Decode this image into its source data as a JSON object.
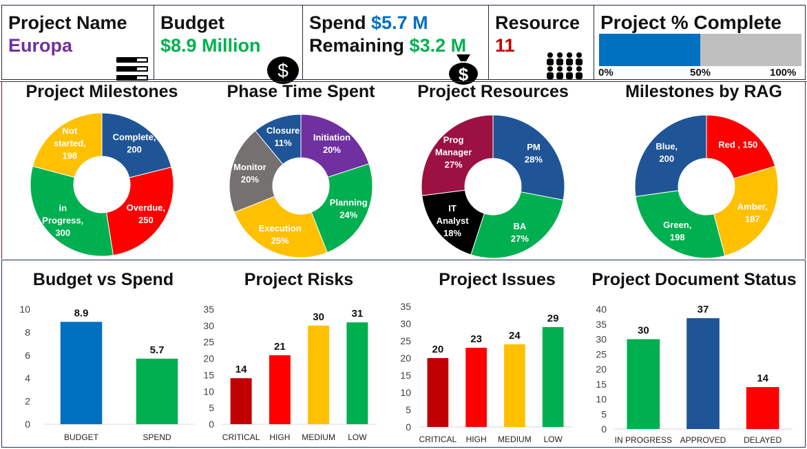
{
  "kpis": {
    "project": {
      "title": "Project Name",
      "value": "Europa"
    },
    "budget": {
      "title": "Budget",
      "value": "$8.9 Million"
    },
    "spend": {
      "label1": "Spend",
      "value1": "$5.7 M",
      "label2": "Remaining",
      "value2": "$3.2 M"
    },
    "resource": {
      "title": "Resource",
      "value": "11"
    },
    "complete": {
      "title": "Project % Complete",
      "percent": 50,
      "tick0": "0%",
      "tick50": "50%",
      "tick100": "100%"
    }
  },
  "colors": {
    "blue": "#1f5596",
    "red": "#ff0000",
    "darkred": "#c00000",
    "green": "#00b050",
    "yellow": "#ffc000",
    "purple": "#7030a0",
    "gray": "#767171",
    "black": "#000000",
    "maroon": "#9a1142",
    "accent_blue": "#0070c0",
    "light_gray": "#bfbfbf"
  },
  "chart_data": [
    {
      "id": "milestones",
      "type": "pie",
      "title": "Project Milestones",
      "slices": [
        {
          "name": "Complete",
          "label": [
            "Complete,",
            "200"
          ],
          "value": 200,
          "color": "#1f5596"
        },
        {
          "name": "Overdue",
          "label": [
            "Overdue,",
            "250"
          ],
          "value": 250,
          "color": "#ff0000"
        },
        {
          "name": "in Progress",
          "label": [
            "in",
            "Progress,",
            "300"
          ],
          "value": 300,
          "color": "#00b050"
        },
        {
          "name": "Not started",
          "label": [
            "Not",
            "started,",
            "198"
          ],
          "value": 198,
          "color": "#ffc000"
        }
      ]
    },
    {
      "id": "phase",
      "type": "pie",
      "title": "Phase Time Spent",
      "slices": [
        {
          "name": "Initiation",
          "label": [
            "Initiation",
            "20%"
          ],
          "value": 20,
          "color": "#7030a0"
        },
        {
          "name": "Planning",
          "label": [
            "Planning",
            "24%"
          ],
          "value": 24,
          "color": "#00b050"
        },
        {
          "name": "Execution",
          "label": [
            "Execution",
            "25%"
          ],
          "value": 25,
          "color": "#ffc000"
        },
        {
          "name": "Monitor",
          "label": [
            "Monitor",
            "20%"
          ],
          "value": 20,
          "color": "#767171"
        },
        {
          "name": "Closure",
          "label": [
            "Closure",
            "11%"
          ],
          "value": 11,
          "color": "#1f5596"
        }
      ]
    },
    {
      "id": "resources",
      "type": "pie",
      "title": "Project Resources",
      "slices": [
        {
          "name": "PM",
          "label": [
            "PM",
            "28%"
          ],
          "value": 28,
          "color": "#1f5596"
        },
        {
          "name": "BA",
          "label": [
            "BA",
            "27%"
          ],
          "value": 27,
          "color": "#00b050"
        },
        {
          "name": "IT Analyst",
          "label": [
            "IT",
            "Analyst",
            "18%"
          ],
          "value": 18,
          "color": "#000000"
        },
        {
          "name": "Prog Manager",
          "label": [
            "Prog",
            "Manager",
            "27%"
          ],
          "value": 27,
          "color": "#9a1142"
        }
      ]
    },
    {
      "id": "rag",
      "type": "pie",
      "title": "Milestones by RAG",
      "slices": [
        {
          "name": "Red",
          "label": [
            "Red , 150"
          ],
          "value": 150,
          "color": "#ff0000"
        },
        {
          "name": "Amber",
          "label": [
            "Amber,",
            "187"
          ],
          "value": 187,
          "color": "#ffc000"
        },
        {
          "name": "Green",
          "label": [
            "Green,",
            "198"
          ],
          "value": 198,
          "color": "#00b050"
        },
        {
          "name": "Blue",
          "label": [
            "Blue,",
            "200"
          ],
          "value": 200,
          "color": "#1f5596"
        }
      ]
    },
    {
      "id": "budget_spend",
      "type": "bar",
      "title": "Budget vs Spend",
      "categories": [
        "BUDGET",
        "SPEND"
      ],
      "values": [
        8.9,
        5.7
      ],
      "colors": [
        "#0070c0",
        "#00b050"
      ],
      "ylim": [
        0,
        10
      ],
      "yticks": [
        0,
        2,
        4,
        6,
        8,
        10
      ],
      "grid": false
    },
    {
      "id": "risks",
      "type": "bar",
      "title": "Project Risks",
      "categories": [
        "CRITICAL",
        "HIGH",
        "MEDIUM",
        "LOW"
      ],
      "values": [
        14,
        21,
        30,
        31
      ],
      "colors": [
        "#c00000",
        "#ff0000",
        "#ffc000",
        "#00b050"
      ],
      "ylim": [
        0,
        35
      ],
      "yticks": [
        0,
        5,
        10,
        15,
        20,
        25,
        30,
        35
      ],
      "grid": false
    },
    {
      "id": "issues",
      "type": "bar",
      "title": "Project Issues",
      "categories": [
        "CRITICAL",
        "HIGH",
        "MEDIUM",
        "LOW"
      ],
      "values": [
        20,
        23,
        24,
        29
      ],
      "colors": [
        "#c00000",
        "#ff0000",
        "#ffc000",
        "#00b050"
      ],
      "ylim": [
        0,
        35
      ],
      "yticks": [
        0,
        5,
        10,
        15,
        20,
        25,
        30,
        35
      ],
      "grid": false
    },
    {
      "id": "documents",
      "type": "bar",
      "title": "Project Document Status",
      "categories": [
        "IN PROGRESS",
        "APPROVED",
        "DELAYED"
      ],
      "values": [
        30,
        37,
        14
      ],
      "colors": [
        "#00b050",
        "#1f5596",
        "#ff0000"
      ],
      "ylim": [
        0,
        40
      ],
      "yticks": [
        0,
        5,
        10,
        15,
        20,
        25,
        30,
        35,
        40
      ],
      "grid": false
    }
  ]
}
